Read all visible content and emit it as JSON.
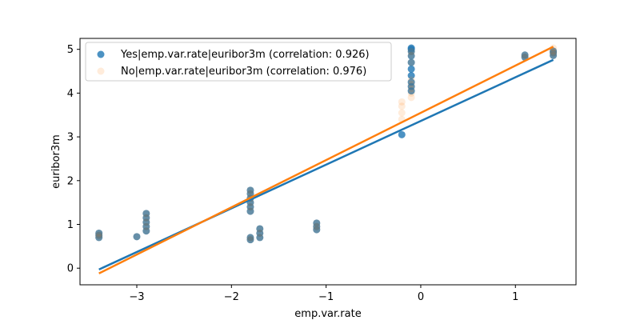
{
  "chart_data": {
    "type": "scatter",
    "xlabel": "emp.var.rate",
    "ylabel": "euribor3m",
    "xlim": [
      -3.6,
      1.64
    ],
    "ylim": [
      -0.38,
      5.25
    ],
    "xticks": [
      -3,
      -2,
      -1,
      0,
      1
    ],
    "yticks": [
      0,
      1,
      2,
      3,
      4,
      5
    ],
    "grid": false,
    "legend_position": "top-left",
    "series": [
      {
        "name": "Yes|emp.var.rate|euribor3m (correlation: 0.926)",
        "color": "#1f77b4",
        "points": [
          {
            "x": -3.4,
            "y": 0.7
          },
          {
            "x": -3.4,
            "y": 0.75
          },
          {
            "x": -3.4,
            "y": 0.8
          },
          {
            "x": -3.0,
            "y": 0.72
          },
          {
            "x": -2.9,
            "y": 0.85
          },
          {
            "x": -2.9,
            "y": 0.95
          },
          {
            "x": -2.9,
            "y": 1.05
          },
          {
            "x": -2.9,
            "y": 1.15
          },
          {
            "x": -2.9,
            "y": 1.25
          },
          {
            "x": -1.8,
            "y": 0.65
          },
          {
            "x": -1.8,
            "y": 0.7
          },
          {
            "x": -1.8,
            "y": 1.3
          },
          {
            "x": -1.8,
            "y": 1.4
          },
          {
            "x": -1.8,
            "y": 1.5
          },
          {
            "x": -1.8,
            "y": 1.6
          },
          {
            "x": -1.8,
            "y": 1.7
          },
          {
            "x": -1.8,
            "y": 1.78
          },
          {
            "x": -1.7,
            "y": 0.7
          },
          {
            "x": -1.7,
            "y": 0.8
          },
          {
            "x": -1.7,
            "y": 0.9
          },
          {
            "x": -1.1,
            "y": 0.88
          },
          {
            "x": -1.1,
            "y": 0.95
          },
          {
            "x": -1.1,
            "y": 1.03
          },
          {
            "x": -0.2,
            "y": 3.05
          },
          {
            "x": -0.1,
            "y": 4.05
          },
          {
            "x": -0.1,
            "y": 4.15
          },
          {
            "x": -0.1,
            "y": 4.25
          },
          {
            "x": -0.1,
            "y": 4.4
          },
          {
            "x": -0.1,
            "y": 4.55
          },
          {
            "x": -0.1,
            "y": 4.7
          },
          {
            "x": -0.1,
            "y": 4.85
          },
          {
            "x": -0.1,
            "y": 4.95
          },
          {
            "x": -0.1,
            "y": 5.0
          },
          {
            "x": -0.1,
            "y": 5.03
          },
          {
            "x": 1.1,
            "y": 4.82
          },
          {
            "x": 1.1,
            "y": 4.87
          },
          {
            "x": 1.4,
            "y": 4.86
          },
          {
            "x": 1.4,
            "y": 4.92
          },
          {
            "x": 1.4,
            "y": 4.96
          }
        ],
        "fit": {
          "x": [
            -3.4,
            1.4
          ],
          "y": [
            -0.03,
            4.76
          ]
        }
      },
      {
        "name": "No|emp.var.rate|euribor3m (correlation: 0.976)",
        "color": "#ff7f0e",
        "points": [
          {
            "x": -3.4,
            "y": 0.7
          },
          {
            "x": -3.4,
            "y": 0.75
          },
          {
            "x": -3.4,
            "y": 0.8
          },
          {
            "x": -3.0,
            "y": 0.72
          },
          {
            "x": -2.9,
            "y": 0.85
          },
          {
            "x": -2.9,
            "y": 0.95
          },
          {
            "x": -2.9,
            "y": 1.05
          },
          {
            "x": -2.9,
            "y": 1.15
          },
          {
            "x": -2.9,
            "y": 1.25
          },
          {
            "x": -1.8,
            "y": 0.65
          },
          {
            "x": -1.8,
            "y": 0.7
          },
          {
            "x": -1.8,
            "y": 1.3
          },
          {
            "x": -1.8,
            "y": 1.4
          },
          {
            "x": -1.8,
            "y": 1.5
          },
          {
            "x": -1.8,
            "y": 1.6
          },
          {
            "x": -1.8,
            "y": 1.7
          },
          {
            "x": -1.8,
            "y": 1.78
          },
          {
            "x": -1.7,
            "y": 0.7
          },
          {
            "x": -1.7,
            "y": 0.8
          },
          {
            "x": -1.7,
            "y": 0.9
          },
          {
            "x": -1.1,
            "y": 0.88
          },
          {
            "x": -1.1,
            "y": 0.95
          },
          {
            "x": -1.1,
            "y": 1.03
          },
          {
            "x": -0.2,
            "y": 3.4
          },
          {
            "x": -0.2,
            "y": 3.55
          },
          {
            "x": -0.2,
            "y": 3.7
          },
          {
            "x": -0.2,
            "y": 3.8
          },
          {
            "x": -0.1,
            "y": 3.9
          },
          {
            "x": -0.1,
            "y": 4.0
          },
          {
            "x": -0.1,
            "y": 4.1
          },
          {
            "x": -0.1,
            "y": 4.2
          },
          {
            "x": -0.1,
            "y": 4.3
          },
          {
            "x": -0.1,
            "y": 4.7
          },
          {
            "x": -0.1,
            "y": 4.86
          },
          {
            "x": -0.1,
            "y": 4.95
          },
          {
            "x": 1.1,
            "y": 4.82
          },
          {
            "x": 1.1,
            "y": 4.87
          },
          {
            "x": 1.4,
            "y": 4.86
          },
          {
            "x": 1.4,
            "y": 4.92
          },
          {
            "x": 1.4,
            "y": 4.96
          },
          {
            "x": 1.4,
            "y": 5.03
          }
        ],
        "fit": {
          "x": [
            -3.4,
            1.4
          ],
          "y": [
            -0.12,
            5.06
          ]
        }
      }
    ]
  }
}
